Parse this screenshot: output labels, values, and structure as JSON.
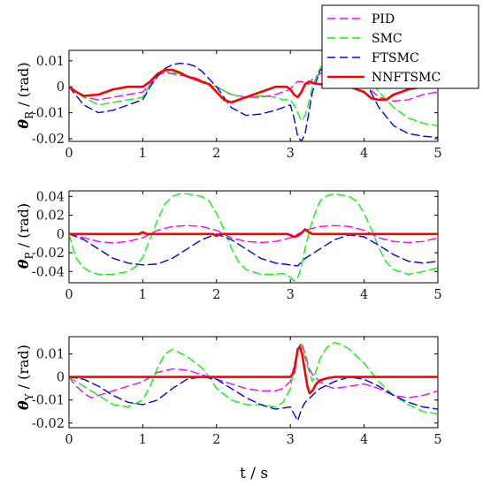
{
  "chart_data": [
    {
      "type": "line",
      "panel": "roll",
      "ylabel": {
        "symbol": "θ",
        "subscript": "R",
        "unit": " / (rad)"
      },
      "xlim": [
        0,
        5
      ],
      "ylim": [
        -0.021,
        0.014
      ],
      "xticks": [
        "0",
        "1",
        "2",
        "3",
        "4",
        "5"
      ],
      "yticks": [
        {
          "value": 0.01,
          "label": "0.01"
        },
        {
          "value": 0,
          "label": "0"
        },
        {
          "value": -0.01,
          "label": "-0.01"
        },
        {
          "value": -0.02,
          "label": "-0.02"
        }
      ],
      "series": [
        {
          "name": "PID",
          "x": [
            0,
            0.2,
            0.4,
            0.6,
            0.8,
            1.0,
            1.1,
            1.2,
            1.3,
            1.4,
            1.5,
            1.6,
            1.7,
            1.8,
            1.9,
            2.0,
            2.2,
            2.4,
            2.6,
            2.8,
            3.0,
            3.05,
            3.1,
            3.15,
            3.2,
            3.25,
            3.3,
            3.4,
            3.5,
            3.6,
            3.8,
            4.0,
            4.2,
            4.4,
            4.6,
            4.8,
            5.0
          ],
          "y": [
            0,
            -0.004,
            -0.005,
            -0.004,
            -0.003,
            -0.002,
            0.001,
            0.0045,
            0.0055,
            0.005,
            0.0045,
            0.004,
            0.0035,
            0.0025,
            0.001,
            0,
            -0.003,
            -0.004,
            -0.004,
            -0.003,
            -0.001,
            0.001,
            0.002,
            0.002,
            0.0015,
            0.001,
            0.003,
            0.005,
            0.006,
            0.006,
            0.005,
            0.001,
            -0.004,
            -0.0055,
            -0.005,
            -0.003,
            -0.002
          ]
        },
        {
          "name": "SMC",
          "x": [
            0,
            0.2,
            0.4,
            0.6,
            0.8,
            1.0,
            1.1,
            1.2,
            1.3,
            1.4,
            1.5,
            1.6,
            1.7,
            1.8,
            1.9,
            2.0,
            2.2,
            2.4,
            2.6,
            2.8,
            2.9,
            3.0,
            3.05,
            3.1,
            3.15,
            3.2,
            3.25,
            3.3,
            3.4,
            3.5,
            3.6,
            3.8,
            4.0,
            4.2,
            4.4,
            4.6,
            4.8,
            5.0
          ],
          "y": [
            0,
            -0.004,
            -0.007,
            -0.006,
            -0.005,
            -0.004,
            0.001,
            0.005,
            0.006,
            0.0055,
            0.005,
            0.004,
            0.003,
            0.0015,
            0.0005,
            0,
            -0.003,
            -0.004,
            -0.0035,
            -0.004,
            -0.005,
            -0.005,
            -0.007,
            -0.01,
            -0.013,
            -0.011,
            -0.006,
            0,
            0.007,
            0.011,
            0.012,
            0.011,
            0.006,
            -0.002,
            -0.008,
            -0.012,
            -0.014,
            -0.015
          ]
        },
        {
          "name": "FTSMC",
          "x": [
            0,
            0.2,
            0.4,
            0.6,
            0.8,
            1.0,
            1.1,
            1.2,
            1.3,
            1.4,
            1.5,
            1.6,
            1.7,
            1.8,
            1.9,
            2.0,
            2.2,
            2.4,
            2.6,
            2.8,
            3.0,
            3.05,
            3.1,
            3.15,
            3.2,
            3.25,
            3.3,
            3.4,
            3.5,
            3.6,
            3.8,
            4.0,
            4.2,
            4.4,
            4.6,
            4.8,
            5.0
          ],
          "y": [
            0,
            -0.007,
            -0.01,
            -0.009,
            -0.007,
            -0.005,
            0,
            0.004,
            0.007,
            0.0085,
            0.009,
            0.0088,
            0.008,
            0.006,
            0.003,
            0,
            -0.008,
            -0.011,
            -0.0105,
            -0.009,
            -0.007,
            -0.012,
            -0.019,
            -0.021,
            -0.018,
            -0.01,
            -0.002,
            0.006,
            0.01,
            0.011,
            0.01,
            0.003,
            -0.008,
            -0.015,
            -0.018,
            -0.019,
            -0.0195
          ]
        },
        {
          "name": "NNFTSMC",
          "x": [
            0,
            0.1,
            0.2,
            0.4,
            0.6,
            0.8,
            1.0,
            1.1,
            1.2,
            1.3,
            1.4,
            1.5,
            1.6,
            1.7,
            1.8,
            1.9,
            2.0,
            2.1,
            2.2,
            2.4,
            2.6,
            2.8,
            2.95,
            3.0,
            3.05,
            3.1,
            3.15,
            3.2,
            3.25,
            3.3,
            3.4,
            3.5,
            3.6,
            3.8,
            4.0,
            4.1,
            4.2,
            4.3,
            4.4,
            4.5,
            4.6,
            4.8,
            5.0
          ],
          "y": [
            0,
            -0.002,
            -0.0035,
            -0.003,
            -0.001,
            0,
            0,
            0.002,
            0.005,
            0.0065,
            0.0065,
            0.0055,
            0.004,
            0.003,
            0.002,
            0.001,
            -0.002,
            -0.005,
            -0.006,
            -0.004,
            -0.002,
            0,
            0,
            -0.001,
            -0.003,
            -0.004,
            -0.002,
            0.001,
            0.002,
            0.0015,
            0.001,
            0.001,
            0.0005,
            0,
            -0.002,
            -0.0045,
            -0.005,
            -0.005,
            -0.003,
            -0.002,
            -0.001,
            0,
            0
          ]
        }
      ]
    },
    {
      "type": "line",
      "panel": "pitch",
      "ylabel": {
        "symbol": "θ",
        "subscript": "P",
        "unit": " / (rad)"
      },
      "xlim": [
        0,
        5
      ],
      "ylim": [
        -0.052,
        0.046
      ],
      "xticks": [
        "0",
        "1",
        "2",
        "3",
        "4",
        "5"
      ],
      "yticks": [
        {
          "value": 0.04,
          "label": "0.04"
        },
        {
          "value": 0.02,
          "label": "0.02"
        },
        {
          "value": 0,
          "label": "0"
        },
        {
          "value": -0.02,
          "label": "-0.02"
        },
        {
          "value": -0.04,
          "label": "-0.04"
        }
      ],
      "series": [
        {
          "name": "PID",
          "x": [
            0,
            0.2,
            0.4,
            0.6,
            0.8,
            1.0,
            1.2,
            1.4,
            1.6,
            1.8,
            2.0,
            2.2,
            2.4,
            2.6,
            2.8,
            3.0,
            3.2,
            3.4,
            3.6,
            3.8,
            4.0,
            4.2,
            4.4,
            4.6,
            4.8,
            5.0
          ],
          "y": [
            0,
            -0.004,
            -0.008,
            -0.0095,
            -0.008,
            -0.004,
            0.004,
            0.008,
            0.009,
            0.008,
            0.004,
            -0.004,
            -0.008,
            -0.009,
            -0.008,
            -0.004,
            0.004,
            0.008,
            0.009,
            0.008,
            0.004,
            -0.004,
            -0.008,
            -0.009,
            -0.008,
            -0.004
          ]
        },
        {
          "name": "SMC",
          "x": [
            0,
            0.05,
            0.1,
            0.2,
            0.3,
            0.4,
            0.6,
            0.8,
            0.9,
            1.0,
            1.1,
            1.2,
            1.3,
            1.4,
            1.5,
            1.6,
            1.8,
            1.9,
            2.0,
            2.1,
            2.2,
            2.3,
            2.4,
            2.6,
            2.8,
            2.9,
            3.0,
            3.05,
            3.1,
            3.15,
            3.2,
            3.3,
            3.4,
            3.5,
            3.6,
            3.8,
            3.9,
            4.0,
            4.1,
            4.2,
            4.3,
            4.4,
            4.6,
            4.8,
            5.0
          ],
          "y": [
            0,
            -0.015,
            -0.026,
            -0.036,
            -0.041,
            -0.043,
            -0.043,
            -0.04,
            -0.035,
            -0.025,
            -0.005,
            0.015,
            0.032,
            0.04,
            0.043,
            0.043,
            0.04,
            0.035,
            0.022,
            0.005,
            -0.015,
            -0.03,
            -0.038,
            -0.043,
            -0.043,
            -0.042,
            -0.046,
            -0.05,
            -0.047,
            -0.035,
            -0.015,
            0.015,
            0.035,
            0.041,
            0.043,
            0.04,
            0.035,
            0.022,
            0.005,
            -0.015,
            -0.03,
            -0.038,
            -0.043,
            -0.04,
            -0.036
          ]
        },
        {
          "name": "FTSMC",
          "x": [
            0,
            0.2,
            0.4,
            0.6,
            0.8,
            1.0,
            1.2,
            1.4,
            1.6,
            1.8,
            2.0,
            2.2,
            2.4,
            2.6,
            2.8,
            3.0,
            3.1,
            3.2,
            3.4,
            3.6,
            3.8,
            4.0,
            4.2,
            4.4,
            4.6,
            4.8,
            5.0
          ],
          "y": [
            0,
            -0.006,
            -0.016,
            -0.026,
            -0.031,
            -0.033,
            -0.032,
            -0.026,
            -0.016,
            -0.006,
            0,
            -0.006,
            -0.016,
            -0.026,
            -0.031,
            -0.033,
            -0.034,
            -0.026,
            -0.016,
            -0.006,
            -0.001,
            -0.003,
            -0.012,
            -0.022,
            -0.029,
            -0.031,
            -0.029
          ]
        },
        {
          "name": "NNFTSMC",
          "x": [
            0,
            0.5,
            0.95,
            1.0,
            1.05,
            1.1,
            1.5,
            1.95,
            2.0,
            2.05,
            2.1,
            2.5,
            2.95,
            3.0,
            3.05,
            3.1,
            3.15,
            3.2,
            3.25,
            3.3,
            3.5,
            4.0,
            4.5,
            5.0
          ],
          "y": [
            0,
            0,
            0,
            0.002,
            0,
            0,
            0,
            0,
            -0.002,
            0,
            0,
            0,
            0,
            -0.001,
            -0.003,
            -0.002,
            0.001,
            0.005,
            0.002,
            0,
            0,
            0,
            0,
            0
          ]
        }
      ]
    },
    {
      "type": "line",
      "panel": "yaw",
      "ylabel": {
        "symbol": "θ",
        "subscript": "Y",
        "unit": " / (rad)"
      },
      "xlim": [
        0,
        5
      ],
      "ylim": [
        -0.022,
        0.0175
      ],
      "xticks": [
        "0",
        "1",
        "2",
        "3",
        "4",
        "5"
      ],
      "xlabel": "t / s",
      "yticks": [
        {
          "value": 0.01,
          "label": "0.01"
        },
        {
          "value": 0,
          "label": "0"
        },
        {
          "value": -0.01,
          "label": "-0.01"
        },
        {
          "value": -0.02,
          "label": "-0.02"
        }
      ],
      "series": [
        {
          "name": "PID",
          "x": [
            0,
            0.1,
            0.2,
            0.3,
            0.4,
            0.6,
            0.8,
            1.0,
            1.2,
            1.4,
            1.6,
            1.8,
            2.0,
            2.2,
            2.4,
            2.6,
            2.8,
            2.9,
            3.0,
            3.05,
            3.1,
            3.15,
            3.2,
            3.25,
            3.3,
            3.4,
            3.5,
            3.6,
            3.8,
            4.0,
            4.2,
            4.4,
            4.6,
            4.8,
            5.0
          ],
          "y": [
            0,
            -0.004,
            -0.007,
            -0.009,
            -0.008,
            -0.006,
            -0.004,
            -0.002,
            0.002,
            0.0035,
            0.003,
            0.001,
            -0.001,
            -0.003,
            -0.005,
            -0.006,
            -0.006,
            -0.005,
            -0.002,
            0.005,
            0.012,
            0.015,
            0.01,
            0.004,
            0.001,
            -0.002,
            -0.004,
            -0.005,
            -0.004,
            -0.003,
            -0.005,
            -0.008,
            -0.009,
            -0.008,
            -0.006
          ]
        },
        {
          "name": "SMC",
          "x": [
            0,
            0.2,
            0.4,
            0.6,
            0.8,
            1.0,
            1.1,
            1.2,
            1.3,
            1.4,
            1.6,
            1.8,
            1.9,
            2.0,
            2.2,
            2.4,
            2.6,
            2.8,
            2.9,
            3.0,
            3.05,
            3.1,
            3.15,
            3.2,
            3.3,
            3.4,
            3.5,
            3.6,
            3.7,
            3.8,
            4.0,
            4.2,
            4.4,
            4.6,
            4.8,
            5.0
          ],
          "y": [
            0,
            -0.004,
            -0.008,
            -0.012,
            -0.013,
            -0.01,
            -0.004,
            0.004,
            0.01,
            0.012,
            0.009,
            0.004,
            0,
            -0.005,
            -0.01,
            -0.012,
            -0.012,
            -0.013,
            -0.011,
            -0.005,
            0.004,
            0.012,
            0.014,
            0.008,
            -0.002,
            0.008,
            0.013,
            0.015,
            0.014,
            0.012,
            0.006,
            -0.002,
            -0.008,
            -0.012,
            -0.015,
            -0.016
          ]
        },
        {
          "name": "FTSMC",
          "x": [
            0,
            0.2,
            0.4,
            0.6,
            0.8,
            1.0,
            1.2,
            1.4,
            1.6,
            1.8,
            2.0,
            2.2,
            2.4,
            2.6,
            2.8,
            3.0,
            3.05,
            3.1,
            3.15,
            3.2,
            3.3,
            3.4,
            3.6,
            3.8,
            4.0,
            4.2,
            4.4,
            4.6,
            4.8,
            5.0
          ],
          "y": [
            0,
            -0.001,
            -0.004,
            -0.008,
            -0.011,
            -0.012,
            -0.01,
            -0.005,
            -0.001,
            0,
            -0.001,
            -0.005,
            -0.009,
            -0.012,
            -0.014,
            -0.013,
            -0.016,
            -0.019,
            -0.014,
            -0.011,
            -0.008,
            -0.005,
            -0.002,
            0,
            -0.001,
            -0.004,
            -0.008,
            -0.011,
            -0.013,
            -0.014
          ]
        },
        {
          "name": "NNFTSMC",
          "x": [
            0,
            1.0,
            2.0,
            3.0,
            3.05,
            3.08,
            3.1,
            3.13,
            3.16,
            3.2,
            3.23,
            3.26,
            3.3,
            3.35,
            3.4,
            3.5,
            3.6,
            4.0,
            5.0
          ],
          "y": [
            0,
            0,
            0,
            0,
            0.002,
            0.008,
            0.012,
            0.013,
            0.01,
            0.002,
            -0.004,
            -0.007,
            -0.006,
            -0.003,
            -0.0015,
            -0.0005,
            0,
            0,
            0
          ]
        }
      ]
    }
  ],
  "legend": {
    "placement": "top-right",
    "entries": [
      {
        "name": "PID",
        "color": "#ff00ff",
        "dash": "dashed"
      },
      {
        "name": "SMC",
        "color": "#00ff00",
        "dash": "dashed"
      },
      {
        "name": "FTSMC",
        "color": "#0000ff",
        "dash": "dashed"
      },
      {
        "name": "NNFTSMC",
        "color": "#ff0000",
        "dash": "solid"
      }
    ]
  },
  "colors": {
    "PID": "#ff00ff",
    "SMC": "#00ff00",
    "FTSMC": "#0000ff",
    "NNFTSMC": "#ff0000"
  }
}
